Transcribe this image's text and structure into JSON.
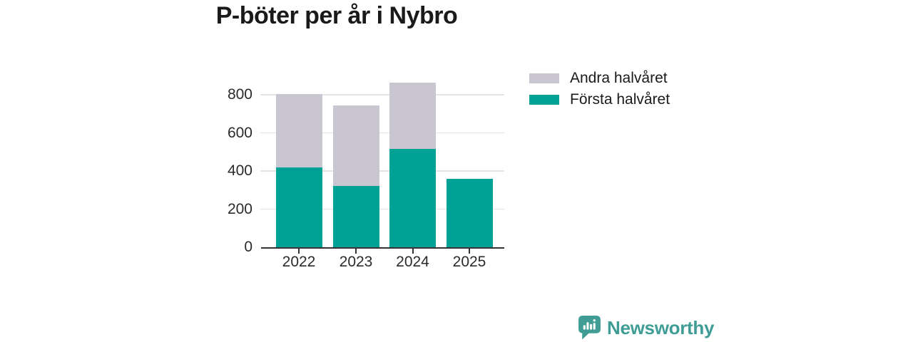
{
  "chart_data": {
    "type": "bar",
    "stacked": true,
    "title": "P-böter per år i Nybro",
    "categories": [
      "2022",
      "2023",
      "2024",
      "2025"
    ],
    "series": [
      {
        "name": "Första halvåret",
        "color": "#00a296",
        "values": [
          420,
          320,
          515,
          360
        ]
      },
      {
        "name": "Andra halvåret",
        "color": "#c9c6d2",
        "values": [
          385,
          425,
          350,
          0
        ]
      }
    ],
    "stacked_totals": [
      805,
      745,
      865,
      360
    ],
    "xlabel": "",
    "ylabel": "",
    "ylim": [
      0,
      905
    ],
    "yticks": [
      0,
      200,
      400,
      600,
      800
    ],
    "grid": "horizontal",
    "legend_position": "top-right-outside"
  },
  "legend": {
    "items": [
      {
        "label": "Andra halvåret",
        "color": "#c9c6d2"
      },
      {
        "label": "Första halvåret",
        "color": "#00a296"
      }
    ]
  },
  "footer": {
    "brand": "Newsworthy",
    "logo_icon": "speech-bubble-bar-chart-icon"
  },
  "colors": {
    "first_half": "#00a296",
    "second_half": "#c9c6d2",
    "grid": "#e4e4e7",
    "axis": "#333333",
    "tick_label": "#2b2b2b",
    "title": "#1a1a1a",
    "brand": "#3f9d95"
  }
}
